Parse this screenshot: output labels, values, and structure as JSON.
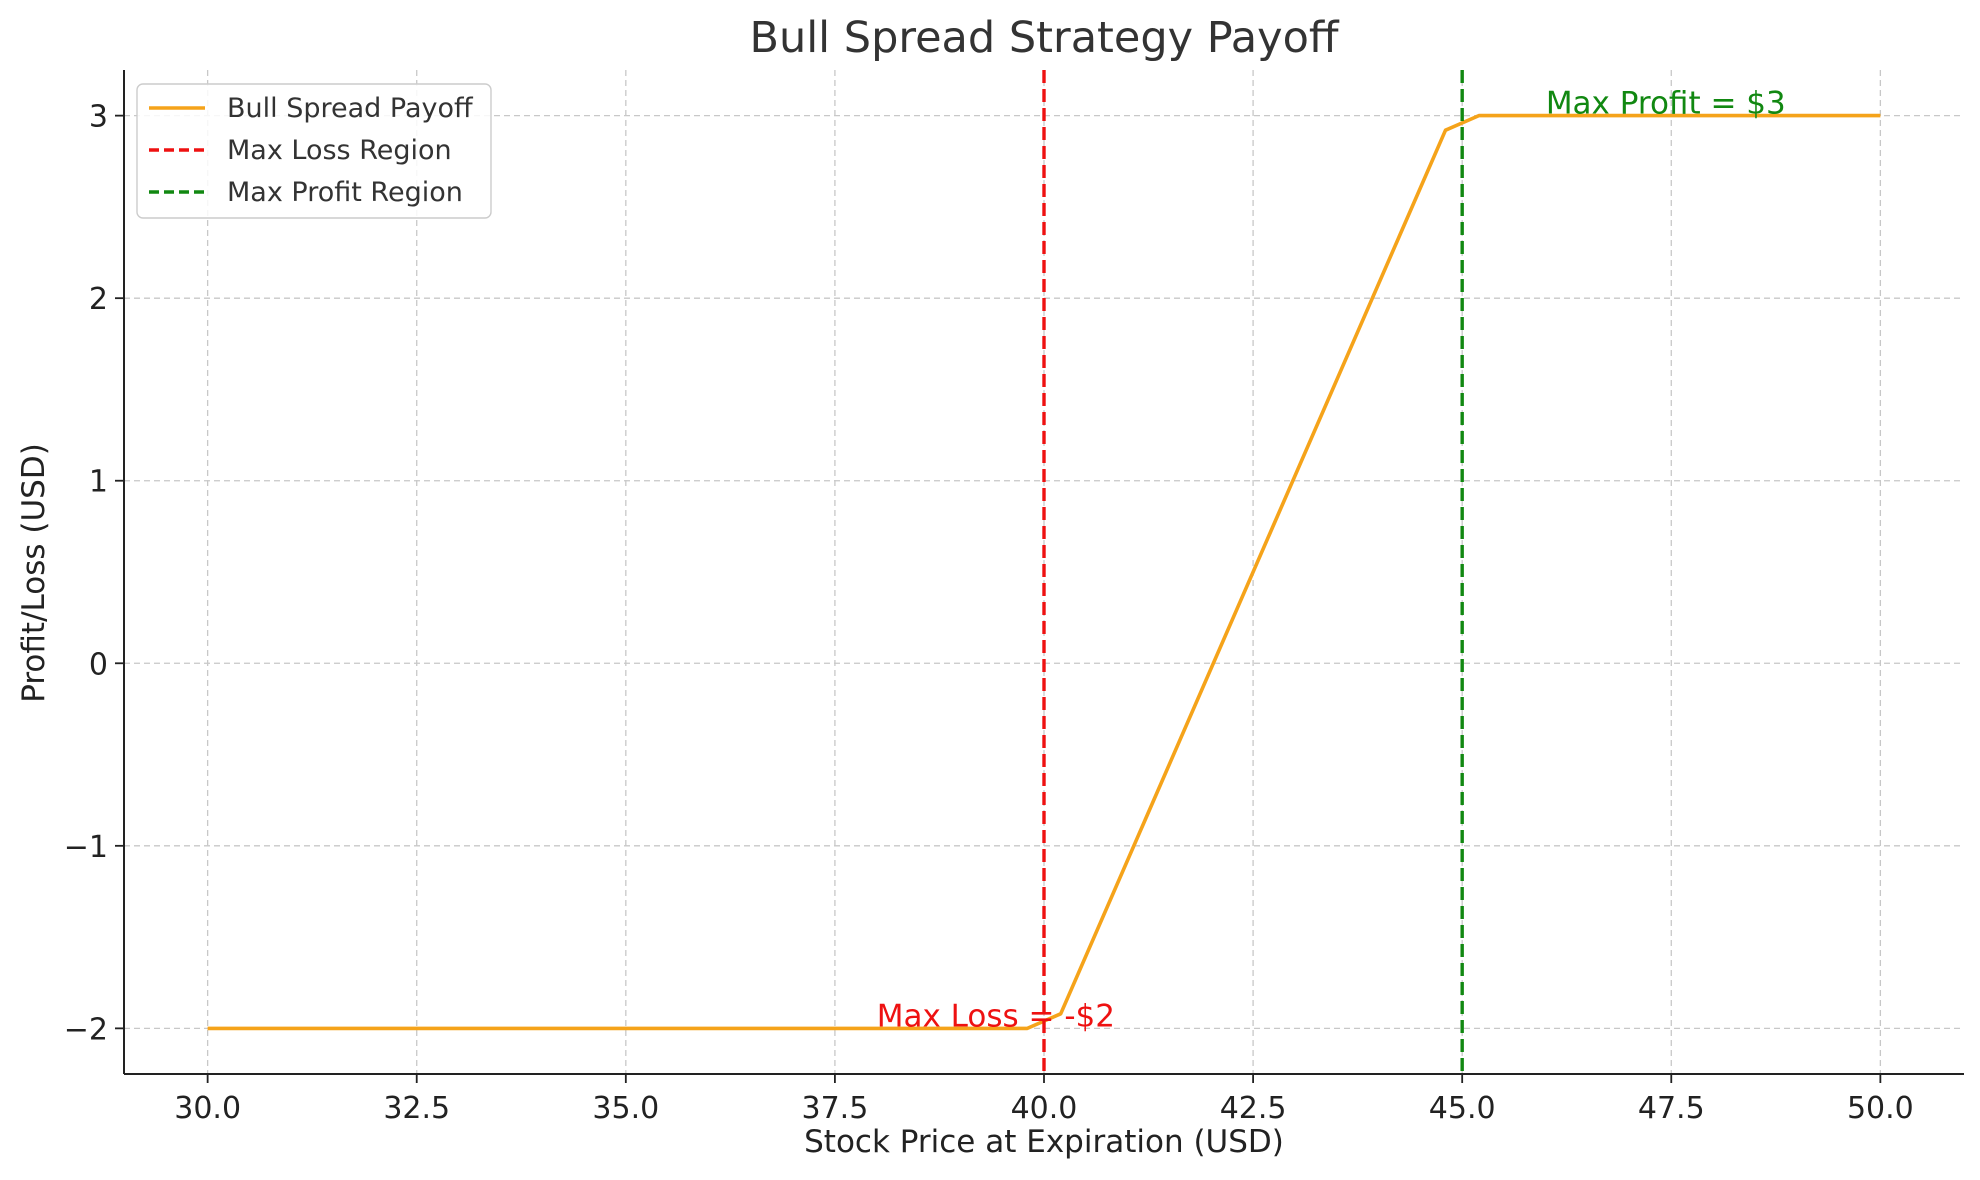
{
  "chart_data": {
    "type": "line",
    "title": "Bull Spread Strategy Payoff",
    "xlabel": "Stock Price at Expiration (USD)",
    "ylabel": "Profit/Loss (USD)",
    "xlim": [
      29,
      51
    ],
    "ylim": [
      -2.25,
      3.25
    ],
    "grid": true,
    "legend_position": "top-left",
    "x_ticks": [
      30.0,
      32.5,
      35.0,
      37.5,
      40.0,
      42.5,
      45.0,
      47.5,
      50.0
    ],
    "x_tick_labels": [
      "30.0",
      "32.5",
      "35.0",
      "37.5",
      "40.0",
      "42.5",
      "45.0",
      "47.5",
      "50.0"
    ],
    "y_ticks": [
      -2,
      -1,
      0,
      1,
      2,
      3
    ],
    "y_tick_labels": [
      "−2",
      "−1",
      "0",
      "1",
      "2",
      "3"
    ],
    "series": [
      {
        "name": "Bull Spread Payoff",
        "color": "#f5a31a",
        "style": "solid",
        "x": [
          30.0,
          39.8,
          40.2,
          44.8,
          45.2,
          50.0
        ],
        "y": [
          -2,
          -2,
          -1.92,
          2.92,
          3,
          3
        ]
      }
    ],
    "vlines": [
      {
        "name": "Max Loss Region",
        "x": 40,
        "color": "#ee1111",
        "style": "dashed"
      },
      {
        "name": "Max Profit Region",
        "x": 45,
        "color": "#118811",
        "style": "dashed"
      }
    ],
    "annotations": [
      {
        "text": "Max Loss = -$2",
        "x": 38,
        "y": -2,
        "color": "#ee1111"
      },
      {
        "text": "Max Profit = $3",
        "x": 46,
        "y": 3,
        "color": "#118811"
      }
    ]
  }
}
